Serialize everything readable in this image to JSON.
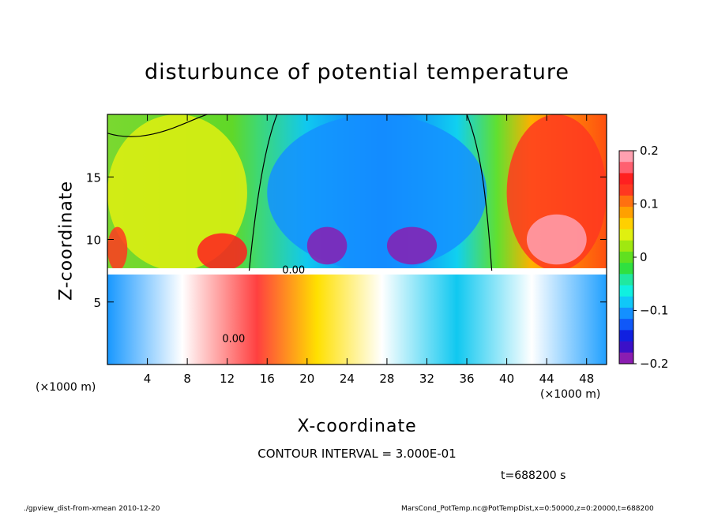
{
  "chart_data": {
    "type": "heatmap",
    "title": "disturbunce of potential temperature",
    "xlabel": "X-coordinate",
    "ylabel": "Z-coordinate",
    "x_unit_left": "(×1000 m)",
    "x_unit_right": "(×1000 m)",
    "xlim": [
      0,
      50
    ],
    "ylim": [
      0,
      20
    ],
    "x_ticks": [
      4,
      8,
      12,
      16,
      20,
      24,
      28,
      32,
      36,
      40,
      44,
      48
    ],
    "y_ticks": [
      5,
      10,
      15
    ],
    "colorbar": {
      "ticks": [
        {
          "value": 0.2,
          "label": "0.2"
        },
        {
          "value": 0.1,
          "label": "0.1"
        },
        {
          "value": 0,
          "label": "0"
        },
        {
          "value": -0.1,
          "label": "−0.1"
        },
        {
          "value": -0.2,
          "label": "−0.2"
        }
      ],
      "range": [
        -0.2,
        0.2
      ],
      "colors": [
        "#8a1db1",
        "#3b10c8",
        "#1020e0",
        "#1058f8",
        "#1490ff",
        "#10c8f8",
        "#10f0e0",
        "#20e8a0",
        "#30e040",
        "#60e020",
        "#a0e810",
        "#e0f010",
        "#ffd000",
        "#ffa000",
        "#ff7010",
        "#ff3820",
        "#ff2020",
        "#ff6070",
        "#ffa0b0"
      ]
    },
    "contour_labels": [
      "0.00",
      "0.00"
    ],
    "contour_interval_text": "CONTOUR INTERVAL = 3.000E-01",
    "time_text": "t=688200 s",
    "regions": [
      {
        "x": [
          0,
          14
        ],
        "z": [
          7.5,
          20
        ],
        "value": 0.04
      },
      {
        "x": [
          9,
          14
        ],
        "z": [
          7.5,
          10.5
        ],
        "value": 0.15
      },
      {
        "x": [
          0,
          2
        ],
        "z": [
          7.5,
          11
        ],
        "value": 0.14
      },
      {
        "x": [
          16,
          38
        ],
        "z": [
          7.5,
          20
        ],
        "value": -0.12
      },
      {
        "x": [
          20,
          24
        ],
        "z": [
          8,
          11
        ],
        "value": -0.2
      },
      {
        "x": [
          28,
          33
        ],
        "z": [
          8,
          11
        ],
        "value": -0.2
      },
      {
        "x": [
          40,
          50
        ],
        "z": [
          7.5,
          20
        ],
        "value": 0.13
      },
      {
        "x": [
          42,
          48
        ],
        "z": [
          8,
          12
        ],
        "value": 0.2
      }
    ]
  },
  "footer": {
    "left": "./gpview_dist-from-xmean  2010-12-20",
    "right": "MarsCond_PotTemp.nc@PotTempDist,x=0:50000,z=0:20000,t=688200"
  }
}
